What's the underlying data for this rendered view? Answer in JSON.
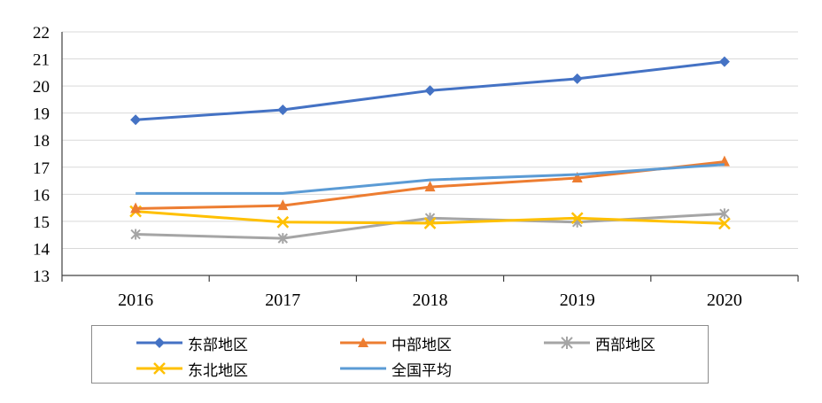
{
  "chart_data": {
    "type": "line",
    "categories": [
      "2016",
      "2017",
      "2018",
      "2019",
      "2020"
    ],
    "ylim": [
      13,
      22
    ],
    "yticks": [
      "13",
      "14",
      "15",
      "16",
      "17",
      "18",
      "19",
      "20",
      "21",
      "22"
    ],
    "grid": true,
    "legend_position": "bottom",
    "series": [
      {
        "name": "东部地区",
        "color": "#4472C4",
        "marker": "diamond",
        "values": [
          18.75,
          19.12,
          19.83,
          20.27,
          20.9
        ]
      },
      {
        "name": "中部地区",
        "color": "#ED7D31",
        "marker": "triangle",
        "values": [
          15.47,
          15.58,
          16.27,
          16.6,
          17.2
        ]
      },
      {
        "name": "西部地区",
        "color": "#A5A5A5",
        "marker": "asterisk",
        "values": [
          14.52,
          14.37,
          15.12,
          14.97,
          15.28
        ]
      },
      {
        "name": "东北地区",
        "color": "#FFC000",
        "marker": "x",
        "values": [
          15.37,
          14.97,
          14.93,
          15.12,
          14.92
        ]
      },
      {
        "name": "全国平均",
        "color": "#5B9BD5",
        "marker": "none",
        "values": [
          16.03,
          16.03,
          16.53,
          16.73,
          17.1
        ]
      }
    ]
  }
}
